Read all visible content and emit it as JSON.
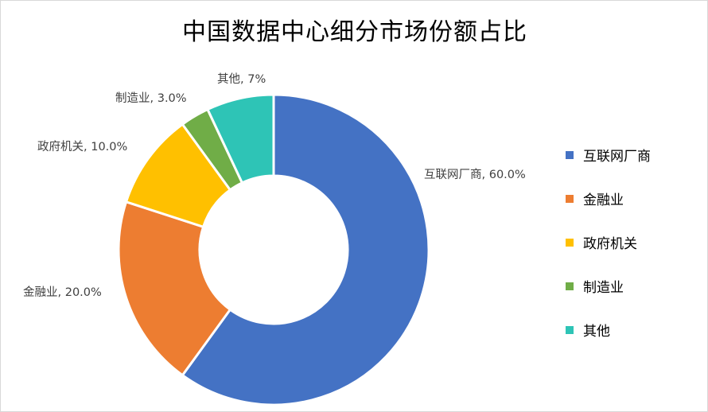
{
  "chart_data": {
    "type": "pie",
    "title": "中国数据中心细分市场份额占比",
    "categories": [
      "互联网厂商",
      "金融业",
      "政府机关",
      "制造业",
      "其他"
    ],
    "values": [
      60.0,
      20.0,
      10.0,
      3.0,
      7.0
    ],
    "value_labels": [
      "60.0%",
      "20.0%",
      "10.0%",
      "3.0%",
      "7%"
    ],
    "colors": [
      "#4472C4",
      "#ED7D31",
      "#FFC000",
      "#70AD47",
      "#2EC4B6"
    ],
    "donut": true,
    "legend_position": "right"
  }
}
